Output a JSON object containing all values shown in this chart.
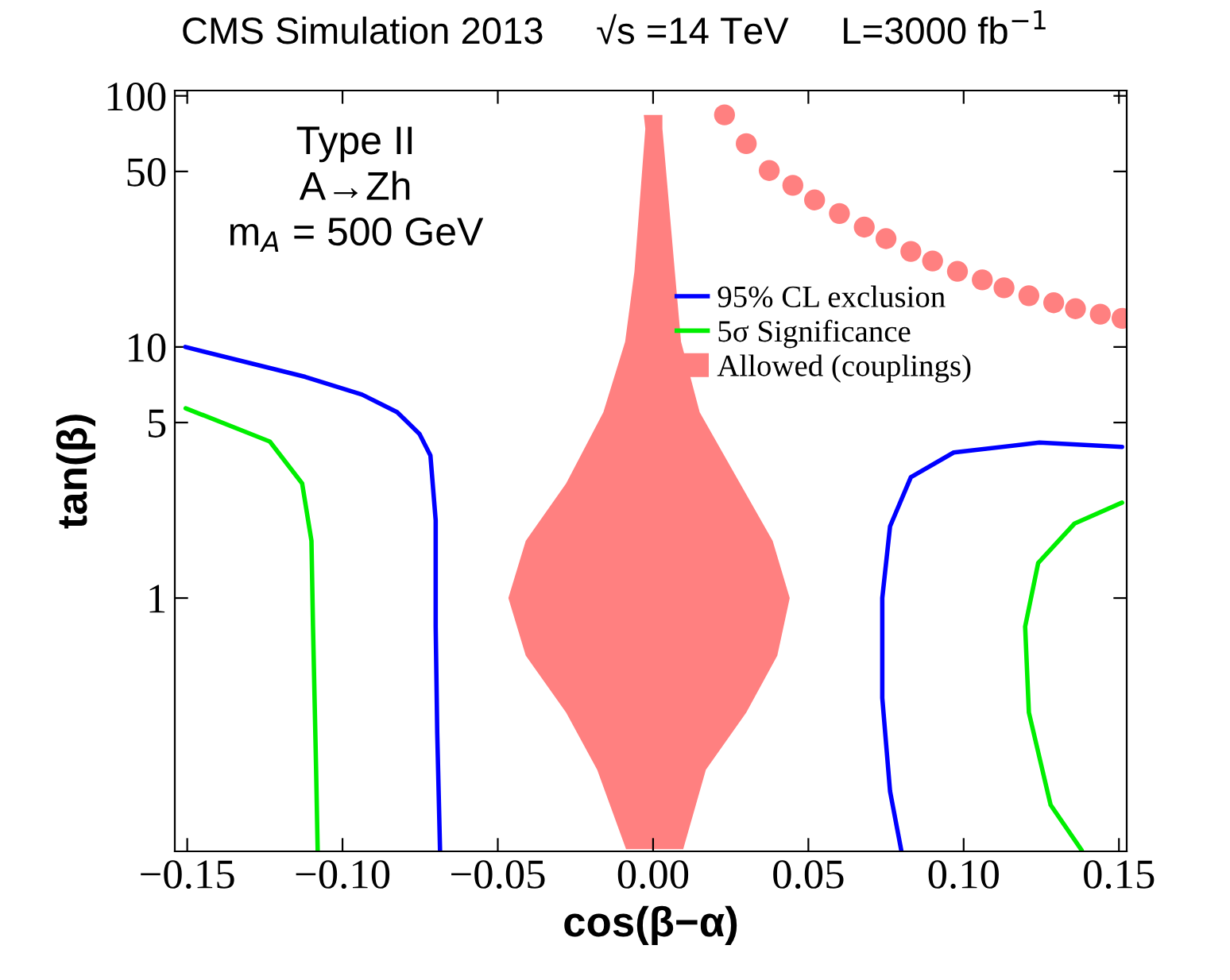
{
  "chart_data": {
    "type": "line",
    "title": "CMS Simulation 2013     √s =14 TeV     L=3000 fb$^{−1}$",
    "xlabel": "cos(β−α)",
    "ylabel": "tan(β)",
    "annotations": [
      "Type II",
      "A→Zh",
      "m$_{A}$ = 500 GeV"
    ],
    "log": "y",
    "xlim": [
      -0.154,
      0.1525
    ],
    "ylim": [
      0.098,
      105
    ],
    "xticks": [
      {
        "value": -0.15,
        "label": "−0.15"
      },
      {
        "value": -0.1,
        "label": "−0.10"
      },
      {
        "value": -0.05,
        "label": "−0.05"
      },
      {
        "value": 0,
        "label": "0.00"
      },
      {
        "value": 0.05,
        "label": "0.05"
      },
      {
        "value": 0.1,
        "label": "0.10"
      },
      {
        "value": 0.15,
        "label": "0.15"
      }
    ],
    "yticks": [
      1,
      5,
      10,
      50,
      100
    ],
    "grid": false,
    "legend": "right",
    "series": [
      {
        "name": "95% CL exclusion",
        "color": "#0000ff",
        "x": [
          -0.1506,
          -0.112,
          -0.0937,
          -0.0824,
          -0.0752,
          -0.0717,
          -0.07,
          -0.07,
          -0.0695,
          -0.0686
        ],
        "values": [
          10.0,
          7.6,
          6.46,
          5.5,
          4.5,
          3.7,
          2.04,
          0.77,
          0.29,
          0.099
        ]
      },
      {
        "name": "5σ Significance",
        "color": "#00ee00",
        "x": [
          -0.1505,
          -0.1234,
          -0.113,
          -0.11,
          -0.1095,
          -0.1085,
          -0.108
        ],
        "values": [
          5.7,
          4.2,
          2.86,
          1.69,
          0.77,
          0.207,
          0.099
        ]
      },
      {
        "name": "Allowed (couplings)",
        "type": "area",
        "color": "#ff8080",
        "x": [
          -0.0087,
          -0.018,
          -0.028,
          -0.041,
          -0.0466,
          -0.041,
          -0.028,
          -0.016,
          -0.009,
          -0.006,
          -0.0025,
          -0.003,
          0.003,
          0.003,
          0.007,
          0.009,
          0.015,
          0.028,
          0.0385,
          0.044,
          0.04,
          0.03,
          0.017,
          0.0097
        ],
        "values": [
          0.1,
          0.207,
          0.35,
          0.59,
          1.0,
          1.69,
          2.86,
          5.5,
          10.5,
          20,
          74,
          84,
          84,
          74,
          20,
          10.5,
          5.5,
          2.86,
          1.69,
          1.0,
          0.59,
          0.35,
          0.207,
          0.1
        ]
      },
      {
        "color": "#0000ff",
        "x": [
          0.151,
          0.1244,
          0.0968,
          0.083,
          0.0763,
          0.0738,
          0.0738,
          0.0763,
          0.0799
        ],
        "values": [
          4.0,
          4.16,
          3.8,
          3.03,
          1.93,
          1.0,
          0.4,
          0.17,
          0.099
        ]
      },
      {
        "color": "#00ee00",
        "x": [
          0.151,
          0.1357,
          0.124,
          0.1198,
          0.121,
          0.128,
          0.138
        ],
        "values": [
          2.4,
          1.98,
          1.38,
          0.77,
          0.35,
          0.15,
          0.099
        ]
      },
      {
        "type": "scatter",
        "color": "#ff8080",
        "marker": "circle",
        "x": [
          0.023,
          0.03,
          0.0374,
          0.045,
          0.052,
          0.06,
          0.068,
          0.075,
          0.083,
          0.09,
          0.098,
          0.106,
          0.113,
          0.121,
          0.129,
          0.136,
          0.144,
          0.151
        ],
        "values": [
          84,
          64.5,
          50.4,
          44,
          38.5,
          34,
          30,
          27,
          24,
          22,
          20,
          18.5,
          17.2,
          16,
          15,
          14.2,
          13.5,
          13
        ]
      }
    ]
  }
}
